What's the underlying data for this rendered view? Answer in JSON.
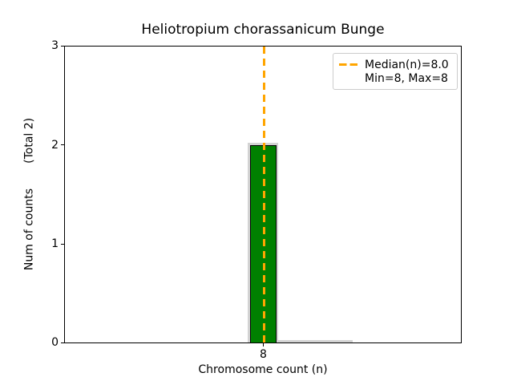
{
  "title": "Heliotropium chorassanicum Bunge",
  "axes": {
    "x_label": "Chromosome count (n)",
    "y_label": "Num of counts       (Total 2)",
    "x_ticks": [
      "8"
    ],
    "y_ticks": [
      "3",
      "2",
      "1",
      "0"
    ]
  },
  "legend": {
    "median_label": "Median(n)=8.0",
    "minmax_label": "Min=8, Max=8"
  },
  "colors": {
    "bar_fill": "#008000",
    "bar_edge": "#000000",
    "median_line": "#ffa500",
    "underlay": "#d3d3d3",
    "legend_border": "#cccccc",
    "background": "#ffffff"
  },
  "chart_data": {
    "type": "bar",
    "categories": [
      "8"
    ],
    "values": [
      2
    ],
    "title": "Heliotropium chorassanicum Bunge",
    "xlabel": "Chromosome count (n)",
    "ylabel": "Num of counts (Total 2)",
    "ylim": [
      0,
      3
    ],
    "y_tick_values": [
      0,
      1,
      2,
      3
    ],
    "median_n": 8.0,
    "min_n": 8,
    "max_n": 8,
    "total_counts": 2,
    "grid": false,
    "legend_position": "upper right",
    "legend_entries": [
      "Median(n)=8.0",
      "Min=8, Max=8"
    ],
    "annotations": {
      "median_line": {
        "x": 8.0,
        "style": "dashed",
        "color": "#ffa500"
      },
      "underlay_bar": {
        "x": 8,
        "value": 2,
        "color": "#d3d3d3"
      }
    }
  }
}
